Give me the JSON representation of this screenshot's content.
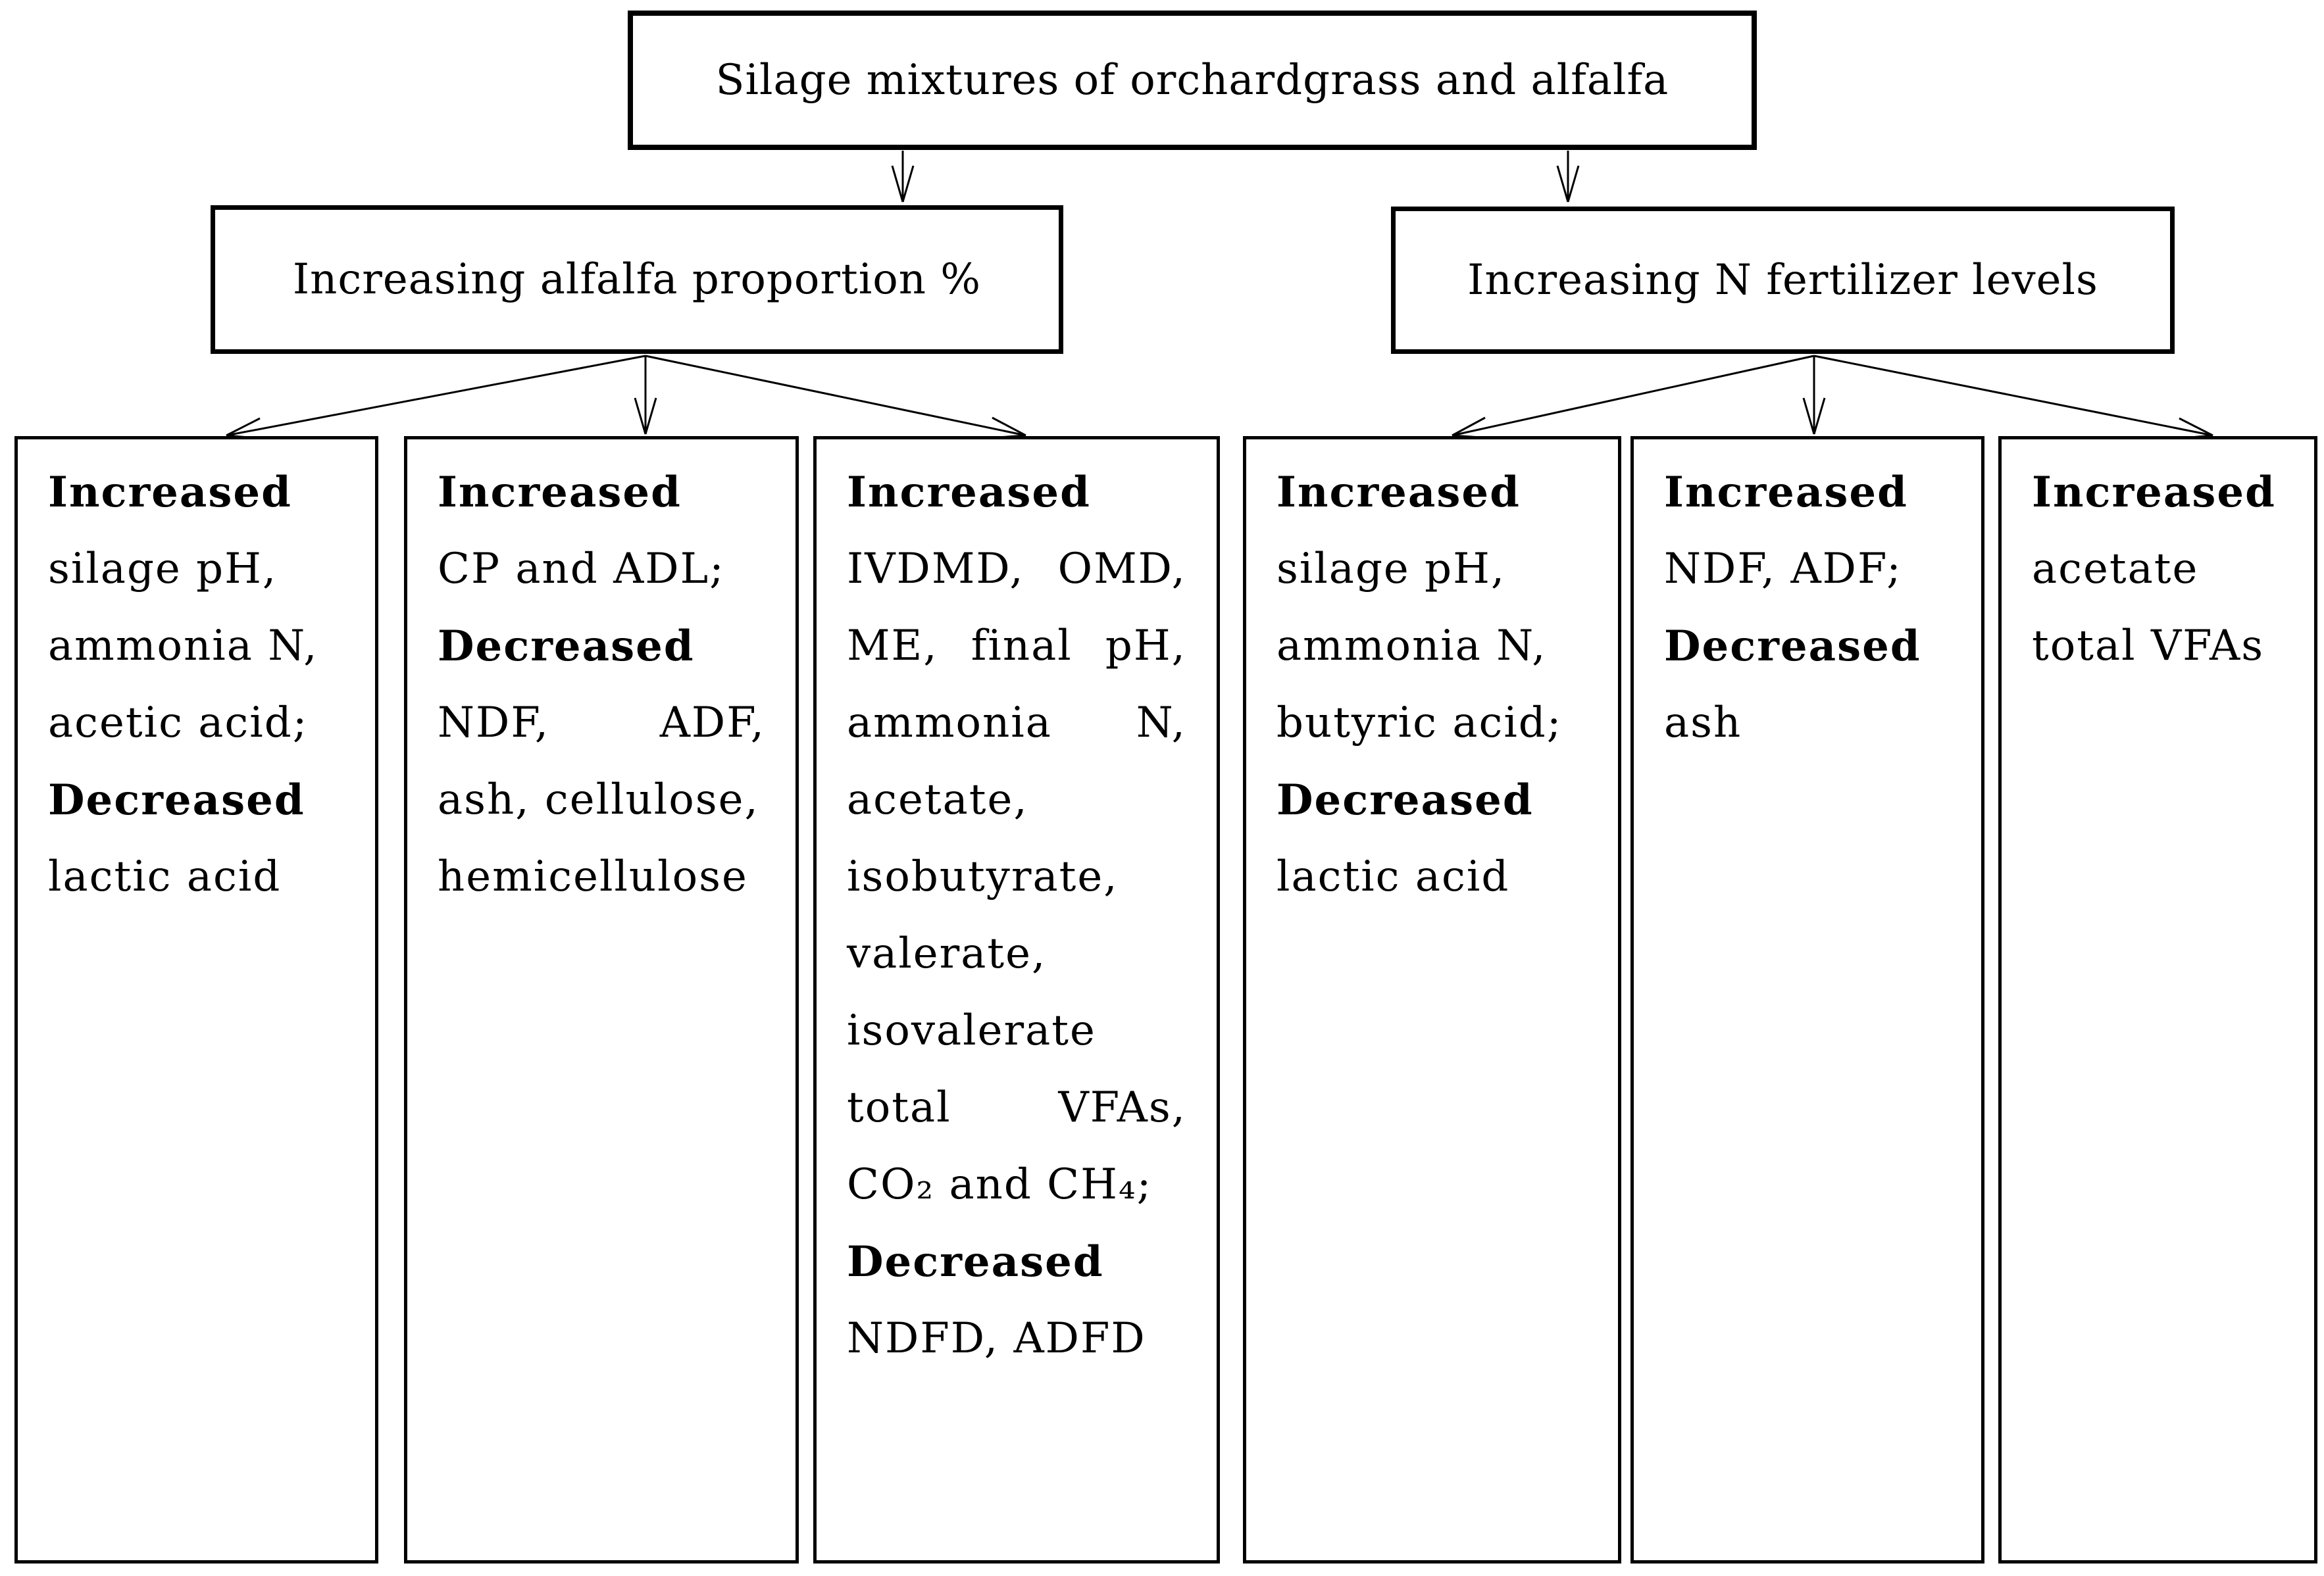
{
  "colors": {
    "ink": "#000000",
    "paper": "#ffffff"
  },
  "diagram": {
    "root_box": {
      "label": "Silage mixtures of orchardgrass and alfalfa"
    },
    "branch_boxes": [
      {
        "id": "alfalfa",
        "label": "Increasing alfalfa proportion %"
      },
      {
        "id": "nitrogen",
        "label": "Increasing N fertilizer levels"
      }
    ],
    "outcome_boxes": [
      {
        "branch": "alfalfa",
        "lines": [
          {
            "text": "Increased",
            "bold": true
          },
          {
            "text": "silage pH,"
          },
          {
            "text": "ammonia N,"
          },
          {
            "text": "acetic acid;"
          },
          {
            "text": "Decreased",
            "bold": true
          },
          {
            "text": "lactic acid"
          }
        ]
      },
      {
        "branch": "alfalfa",
        "lines": [
          {
            "text": "Increased",
            "bold": true
          },
          {
            "text": "CP and ADL;"
          },
          {
            "text": "Decreased",
            "bold": true
          },
          {
            "text": "NDF, ADF,",
            "justify": true
          },
          {
            "text": "ash, cellulose,"
          },
          {
            "text": "hemicellulose"
          }
        ]
      },
      {
        "branch": "alfalfa",
        "lines": [
          {
            "text": "Increased",
            "bold": true
          },
          {
            "text": "IVDMD, OMD,",
            "justify": true
          },
          {
            "text": "ME, final pH,",
            "justify": true
          },
          {
            "text": "ammonia N,",
            "justify": true
          },
          {
            "text": "acetate,"
          },
          {
            "text": "isobutyrate,"
          },
          {
            "text": "valerate,"
          },
          {
            "text": "isovalerate"
          },
          {
            "text": "total VFAs,",
            "justify": true
          },
          {
            "text": "CO₂ and CH₄;"
          },
          {
            "text": "Decreased",
            "bold": true
          },
          {
            "text": "NDFD, ADFD"
          }
        ]
      },
      {
        "branch": "nitrogen",
        "lines": [
          {
            "text": "Increased",
            "bold": true
          },
          {
            "text": "silage pH,"
          },
          {
            "text": "ammonia N,"
          },
          {
            "text": "butyric acid;"
          },
          {
            "text": "Decreased",
            "bold": true
          },
          {
            "text": "lactic acid"
          }
        ]
      },
      {
        "branch": "nitrogen",
        "lines": [
          {
            "text": "Increased",
            "bold": true
          },
          {
            "text": "NDF, ADF;"
          },
          {
            "text": "Decreased",
            "bold": true
          },
          {
            "text": "ash"
          }
        ]
      },
      {
        "branch": "nitrogen",
        "lines": [
          {
            "text": "Increased",
            "bold": true
          },
          {
            "text": "acetate"
          },
          {
            "text": "total VFAs"
          }
        ]
      }
    ]
  }
}
